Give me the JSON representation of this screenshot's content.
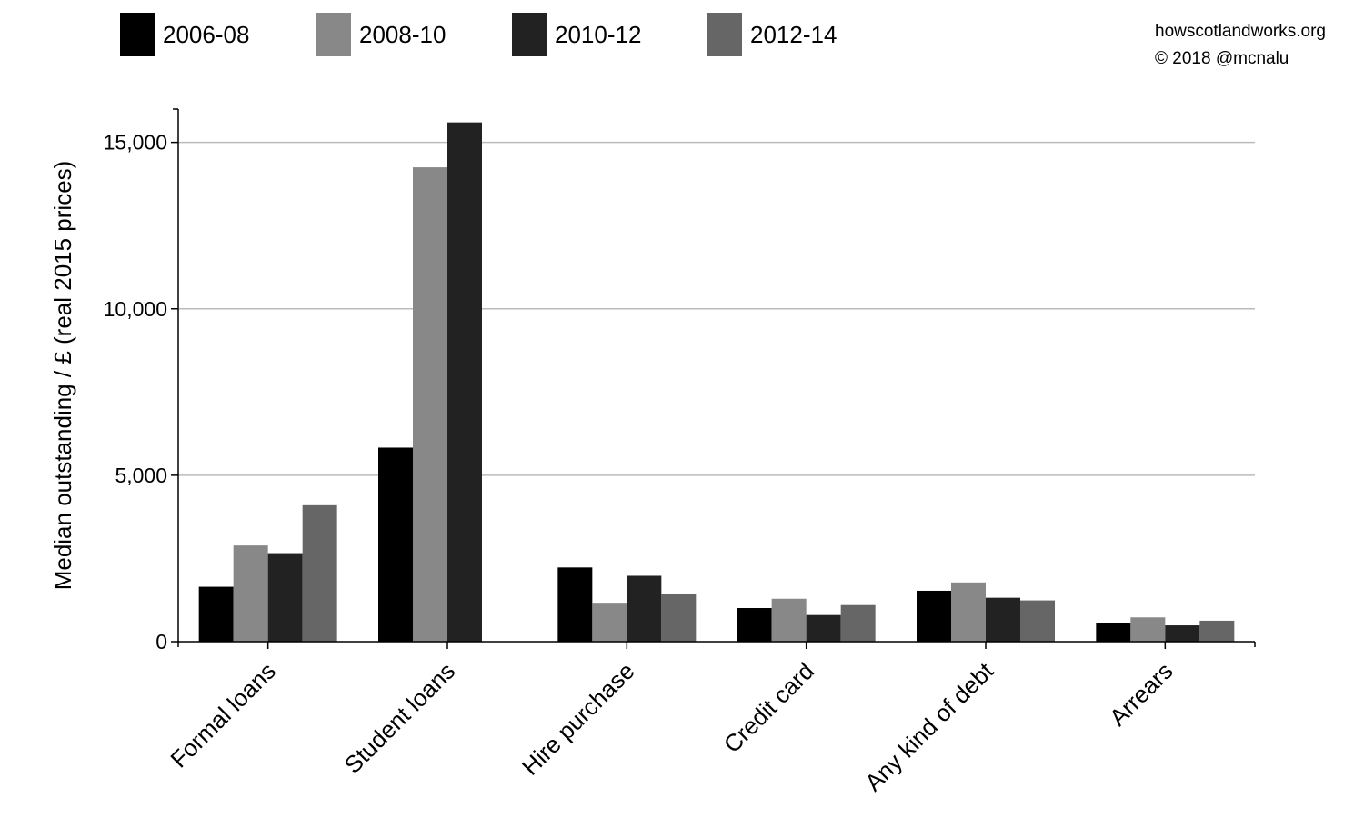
{
  "credits": {
    "site": "howscotlandworks.org",
    "copyright": "© 2018  @mcnalu"
  },
  "chart_data": {
    "type": "bar",
    "title": "",
    "xlabel": "",
    "ylabel": "Median outstanding / £ (real 2015 prices)",
    "ylim": [
      0,
      16000
    ],
    "yticks": [
      0,
      5000,
      10000,
      15000
    ],
    "ytick_labels": [
      "0",
      "5,000",
      "10,000",
      "15,000"
    ],
    "grid": true,
    "legend_position": "top-left",
    "categories": [
      "Formal loans",
      "Student loans",
      "Hire purchase",
      "Credit card",
      "Any kind of debt",
      "Arrears"
    ],
    "series": [
      {
        "name": "2006-08",
        "color": "#000000",
        "values": [
          1650,
          5830,
          2230,
          1010,
          1530,
          550
        ]
      },
      {
        "name": "2008-10",
        "color": "#888888",
        "values": [
          2890,
          14250,
          1170,
          1290,
          1780,
          730
        ]
      },
      {
        "name": "2010-12",
        "color": "#222222",
        "values": [
          2660,
          15600,
          1980,
          800,
          1320,
          490
        ]
      },
      {
        "name": "2012-14",
        "color": "#666666",
        "values": [
          4100,
          null,
          1430,
          1100,
          1240,
          630
        ]
      }
    ]
  }
}
